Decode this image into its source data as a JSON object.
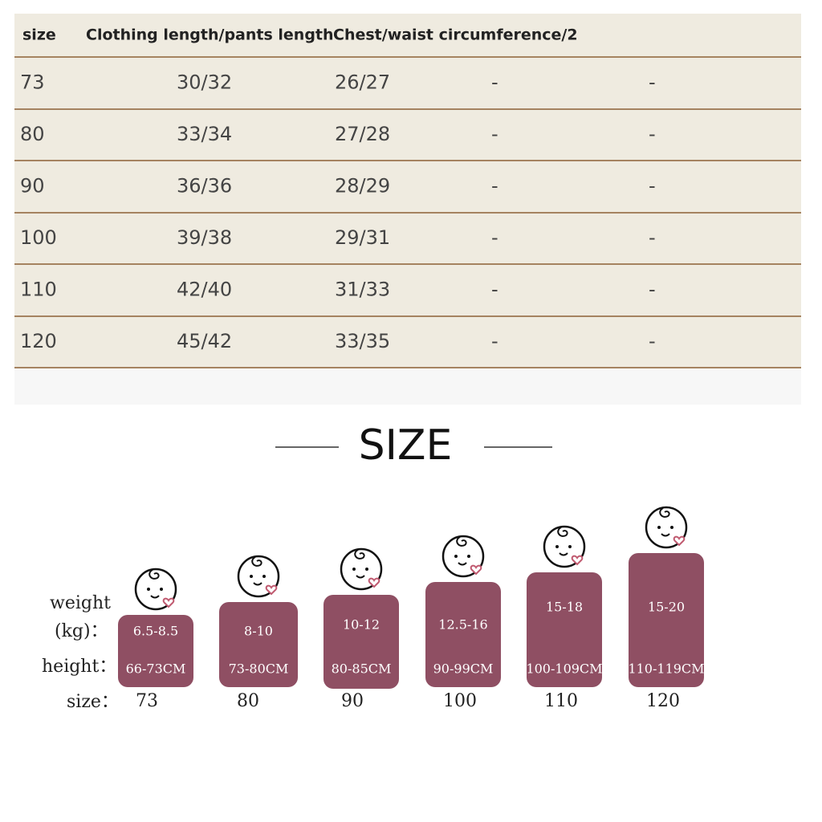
{
  "table": {
    "header": [
      "size",
      "Clothing length/pants length",
      "Chest/waist circumference/2"
    ],
    "rows": [
      [
        "73",
        "30/32",
        "26/27",
        "-",
        "-"
      ],
      [
        "80",
        "33/34",
        "27/28",
        "-",
        "-"
      ],
      [
        "90",
        "36/36",
        "28/29",
        "-",
        "-"
      ],
      [
        "100",
        "39/38",
        "29/31",
        "-",
        "-"
      ],
      [
        "110",
        "42/40",
        "31/33",
        "-",
        "-"
      ],
      [
        "120",
        "45/42",
        "33/35",
        "-",
        "-"
      ]
    ]
  },
  "size_chart": {
    "title": "SIZE",
    "labels": {
      "weight": "weight",
      "kg": "(kg)：",
      "height": "height：",
      "size": "size："
    },
    "items": [
      {
        "weight": "6.5-8.5",
        "height": "66-73CM",
        "size": "73"
      },
      {
        "weight": "8-10",
        "height": "73-80CM",
        "size": "80"
      },
      {
        "weight": "10-12",
        "height": "80-85CM",
        "size": "90"
      },
      {
        "weight": "12.5-16",
        "height": "90-99CM",
        "size": "100"
      },
      {
        "weight": "15-18",
        "height": "100-109CM",
        "size": "110"
      },
      {
        "weight": "15-20",
        "height": "110-119CM",
        "size": "120"
      }
    ]
  }
}
